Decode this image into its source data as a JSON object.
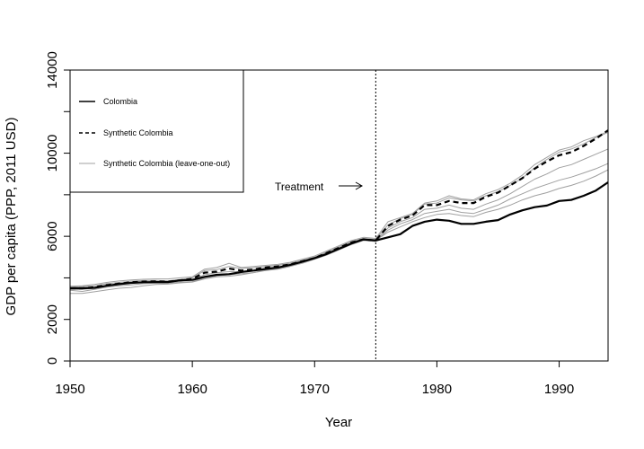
{
  "chart_data": {
    "type": "line",
    "xlabel": "Year",
    "ylabel": "GDP per capita (PPP, 2011 USD)",
    "xlim": [
      1950,
      1994
    ],
    "ylim": [
      0,
      14000
    ],
    "x_ticks": [
      1950,
      1960,
      1970,
      1980,
      1990
    ],
    "y_ticks": [
      0,
      2000,
      6000,
      10000,
      14000
    ],
    "x": [
      1950,
      1951,
      1952,
      1953,
      1954,
      1955,
      1956,
      1957,
      1958,
      1959,
      1960,
      1961,
      1962,
      1963,
      1964,
      1965,
      1966,
      1967,
      1968,
      1969,
      1970,
      1971,
      1972,
      1973,
      1974,
      1975,
      1976,
      1977,
      1978,
      1979,
      1980,
      1981,
      1982,
      1983,
      1984,
      1985,
      1986,
      1987,
      1988,
      1989,
      1990,
      1991,
      1992,
      1993,
      1994
    ],
    "treatment_year": 1975,
    "annotation": "Treatment",
    "legend": {
      "position": "top-left",
      "entries": [
        {
          "label": "Colombia",
          "style": "solid",
          "color": "#000000"
        },
        {
          "label": "Synthetic Colombia",
          "style": "dashed",
          "color": "#000000"
        },
        {
          "label": "Synthetic Colombia (leave-one-out)",
          "style": "solid",
          "color": "#a0a0a0"
        }
      ]
    },
    "series": [
      {
        "name": "Colombia",
        "style": "solid",
        "color": "#000000",
        "width": 2.2,
        "values": [
          3500,
          3500,
          3520,
          3620,
          3700,
          3760,
          3790,
          3800,
          3800,
          3880,
          3900,
          4050,
          4150,
          4180,
          4280,
          4350,
          4430,
          4500,
          4620,
          4780,
          4950,
          5150,
          5400,
          5650,
          5850,
          5800,
          5950,
          6100,
          6500,
          6700,
          6800,
          6750,
          6600,
          6600,
          6700,
          6780,
          7050,
          7250,
          7400,
          7480,
          7700,
          7750,
          7950,
          8200,
          8600
        ]
      },
      {
        "name": "Synthetic Colombia",
        "style": "dashed",
        "color": "#000000",
        "width": 2.2,
        "values": [
          3500,
          3500,
          3550,
          3650,
          3720,
          3790,
          3820,
          3830,
          3820,
          3880,
          3950,
          4250,
          4300,
          4450,
          4350,
          4400,
          4500,
          4550,
          4650,
          4800,
          4950,
          5200,
          5450,
          5700,
          5850,
          5800,
          6500,
          6800,
          7000,
          7500,
          7500,
          7700,
          7600,
          7600,
          7900,
          8100,
          8450,
          8800,
          9250,
          9600,
          9900,
          10050,
          10350,
          10700,
          11100
        ]
      },
      {
        "style": "solid",
        "color": "#a0a0a0",
        "width": 1,
        "values": [
          3400,
          3350,
          3450,
          3550,
          3620,
          3660,
          3720,
          3750,
          3740,
          3800,
          3820,
          4000,
          4100,
          4150,
          4200,
          4250,
          4350,
          4420,
          4550,
          4700,
          4900,
          5100,
          5350,
          5600,
          5800,
          5750,
          6300,
          6600,
          6800,
          7100,
          7200,
          7300,
          7150,
          7100,
          7300,
          7500,
          7800,
          8050,
          8300,
          8500,
          8700,
          8850,
          9050,
          9250,
          9500
        ]
      },
      {
        "style": "solid",
        "color": "#a0a0a0",
        "width": 1,
        "values": [
          3550,
          3580,
          3620,
          3720,
          3780,
          3840,
          3870,
          3880,
          3860,
          3920,
          4000,
          4350,
          4400,
          4550,
          4450,
          4480,
          4550,
          4600,
          4700,
          4850,
          5000,
          5250,
          5500,
          5750,
          5900,
          5850,
          6550,
          6850,
          7050,
          7550,
          7600,
          7850,
          7750,
          7700,
          7950,
          8150,
          8450,
          8800,
          9300,
          9700,
          10050,
          10200,
          10450,
          10750,
          11000
        ]
      },
      {
        "style": "solid",
        "color": "#a0a0a0",
        "width": 1,
        "values": [
          3250,
          3250,
          3330,
          3420,
          3500,
          3540,
          3620,
          3680,
          3700,
          3760,
          3800,
          3950,
          4050,
          4080,
          4150,
          4250,
          4380,
          4450,
          4600,
          4750,
          4920,
          5150,
          5400,
          5680,
          5850,
          5800,
          6200,
          6450,
          6700,
          6900,
          7050,
          7100,
          7000,
          6950,
          7150,
          7300,
          7500,
          7750,
          7950,
          8100,
          8300,
          8450,
          8650,
          8900,
          9200
        ]
      },
      {
        "style": "solid",
        "color": "#a0a0a0",
        "width": 1,
        "values": [
          3600,
          3620,
          3680,
          3780,
          3850,
          3900,
          3930,
          3950,
          3950,
          4000,
          4050,
          4420,
          4500,
          4700,
          4500,
          4550,
          4600,
          4650,
          4750,
          4900,
          5050,
          5300,
          5550,
          5800,
          5950,
          5900,
          6700,
          6900,
          7100,
          7600,
          7700,
          7950,
          7800,
          7750,
          8050,
          8250,
          8550,
          8950,
          9450,
          9800,
          10150,
          10300,
          10600,
          10800,
          11050
        ]
      },
      {
        "style": "solid",
        "color": "#a0a0a0",
        "width": 1,
        "values": [
          3450,
          3450,
          3500,
          3600,
          3680,
          3740,
          3780,
          3800,
          3790,
          3850,
          3900,
          4150,
          4250,
          4300,
          4300,
          4350,
          4450,
          4520,
          4650,
          4800,
          4950,
          5200,
          5450,
          5700,
          5850,
          5800,
          6400,
          6700,
          6900,
          7300,
          7350,
          7500,
          7350,
          7300,
          7550,
          7750,
          8050,
          8400,
          8750,
          9000,
          9300,
          9450,
          9700,
          9950,
          10200
        ]
      }
    ]
  }
}
